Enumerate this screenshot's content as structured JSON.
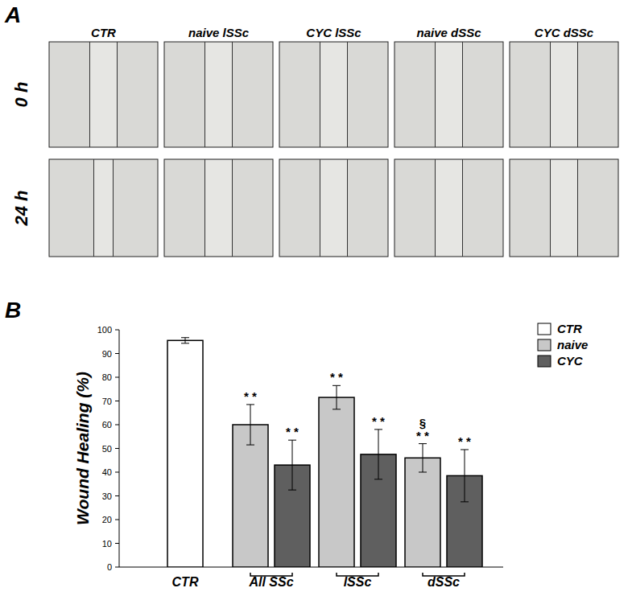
{
  "panel_a": {
    "label": "A",
    "columns": [
      "CTR",
      "naive lSSc",
      "CYC lSSc",
      "naive dSSc",
      "CYC dSSc"
    ],
    "rows": [
      "0 h",
      "24 h"
    ]
  },
  "chart_data": {
    "type": "bar",
    "panel_label": "B",
    "y_label": "Wound Healing (%)",
    "categories": [
      "CTR",
      "All SSc",
      "lSSc",
      "dSSc"
    ],
    "series": [
      {
        "name": "CTR",
        "color": "#ffffff",
        "values": [
          95.5,
          null,
          null,
          null
        ],
        "errors": [
          1.2,
          null,
          null,
          null
        ],
        "annotations": [
          null,
          null,
          null,
          null
        ]
      },
      {
        "name": "naive",
        "color": "#c8c8c8",
        "values": [
          null,
          60,
          71.5,
          46
        ],
        "errors": [
          null,
          8.5,
          5,
          6
        ],
        "annotations": [
          null,
          [
            "* *"
          ],
          [
            "* *"
          ],
          [
            "§",
            "* *"
          ]
        ]
      },
      {
        "name": "CYC",
        "color": "#5f5f5f",
        "values": [
          null,
          43,
          47.5,
          38.5
        ],
        "errors": [
          null,
          10.5,
          10.5,
          11
        ],
        "annotations": [
          null,
          [
            "* *"
          ],
          [
            "* *"
          ],
          [
            "* *"
          ]
        ]
      }
    ],
    "ylim": [
      0,
      100
    ],
    "yticks": [
      0,
      10,
      20,
      30,
      40,
      50,
      60,
      70,
      80,
      90,
      100
    ],
    "grid": false,
    "legend": "upper right"
  }
}
